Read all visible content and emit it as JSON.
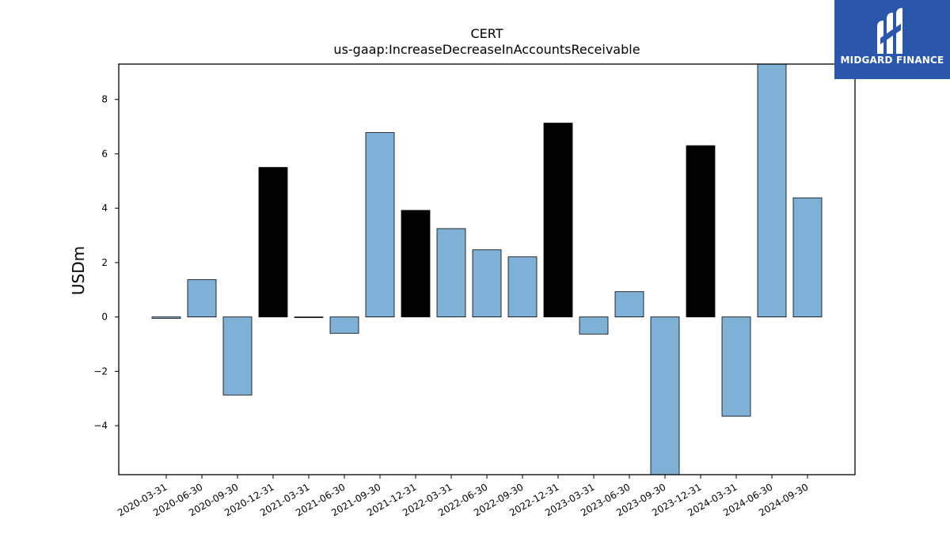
{
  "brand": {
    "name": "MIDGARD FINANCE",
    "background": "#2a56ac"
  },
  "chart_data": {
    "type": "bar",
    "title": "CERT",
    "subtitle": "us-gaap:IncreaseDecreaseInAccountsReceivable",
    "xlabel": "",
    "ylabel": "USDm",
    "ylim": [
      -5.8,
      9.3
    ],
    "yticks": [
      -4,
      -2,
      0,
      2,
      4,
      6,
      8
    ],
    "grid": false,
    "categories": [
      "2020-03-31",
      "2020-06-30",
      "2020-09-30",
      "2020-12-31",
      "2021-03-31",
      "2021-06-30",
      "2021-09-30",
      "2021-12-31",
      "2022-03-31",
      "2022-06-30",
      "2022-09-30",
      "2022-12-31",
      "2023-03-31",
      "2023-06-30",
      "2023-09-30",
      "2023-12-31",
      "2024-03-31",
      "2024-06-30",
      "2024-09-30"
    ],
    "values": [
      -0.05,
      1.37,
      -2.87,
      5.5,
      0.0,
      -0.6,
      6.78,
      3.92,
      3.25,
      2.47,
      2.21,
      7.13,
      -0.63,
      0.93,
      -5.8,
      6.3,
      -3.65,
      9.3,
      4.38
    ],
    "bar_colors": [
      "#7fb0d5",
      "#7fb0d5",
      "#7fb0d5",
      "#000000",
      "#7fb0d5",
      "#7fb0d5",
      "#7fb0d5",
      "#000000",
      "#7fb0d5",
      "#7fb0d5",
      "#7fb0d5",
      "#000000",
      "#7fb0d5",
      "#7fb0d5",
      "#7fb0d5",
      "#000000",
      "#7fb0d5",
      "#7fb0d5",
      "#7fb0d5"
    ]
  }
}
